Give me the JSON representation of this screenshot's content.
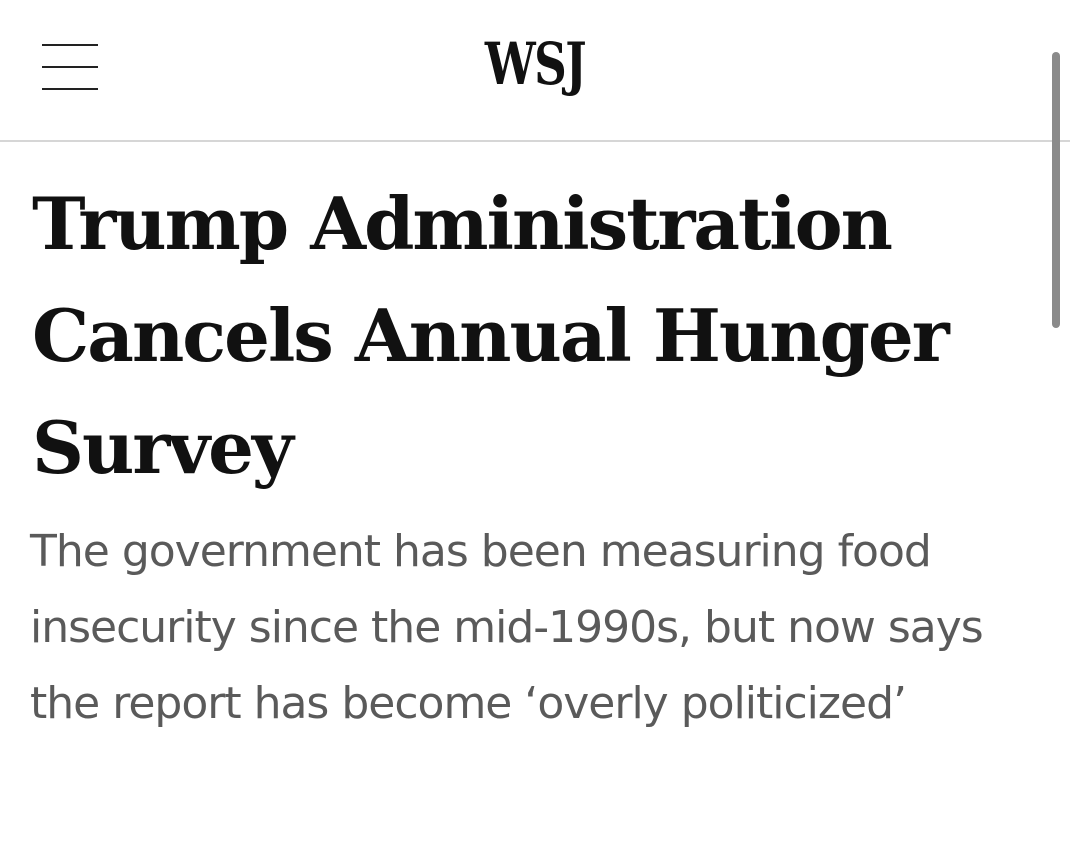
{
  "header": {
    "menu_icon": "hamburger-menu-icon",
    "logo": "WSJ"
  },
  "article": {
    "headline": "Trump Administration Cancels Annual Hunger Survey",
    "dek": "The government has been measuring food insecurity since the mid-1990s, but now says the report has become ‘overly politicized’"
  }
}
